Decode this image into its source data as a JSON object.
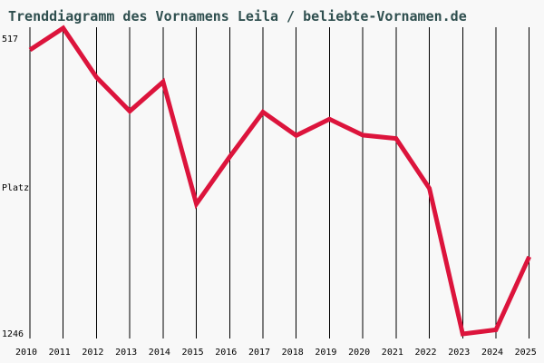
{
  "title": "Trenddiagramm des Vornamens Leila / beliebte-Vornamen.de",
  "colors": {
    "background": "#f8f8f8",
    "line": "#dc143c",
    "grid": "#000000",
    "title_text": "#2f4f4f",
    "axis_text": "#000000"
  },
  "y_axis": {
    "best_label": "517",
    "axis_title": "Platz",
    "worst_label": "1246"
  },
  "chart_data": {
    "type": "line",
    "title": "Trenddiagramm des Vornamens Leila / beliebte-Vornamen.de",
    "categories": [
      "2010",
      "2011",
      "2012",
      "2013",
      "2014",
      "2015",
      "2016",
      "2017",
      "2018",
      "2019",
      "2020",
      "2021",
      "2022",
      "2023",
      "2024",
      "2025"
    ],
    "values": [
      569,
      517,
      634,
      715,
      645,
      936,
      824,
      717,
      773,
      734,
      772,
      780,
      899,
      1246,
      1236,
      1062
    ],
    "series_name": "Platz von Leila",
    "xlabel": "",
    "ylabel": "Platz",
    "ylim": [
      517,
      1246
    ],
    "y_axis_inverted": true,
    "y_tick_labels_shown": [
      "517",
      "1246"
    ],
    "grid": "vertical-only",
    "legend": "none",
    "line_color": "#dc143c",
    "best_value": 517,
    "best_year": "2011",
    "worst_value": 1246,
    "worst_year": "2023"
  }
}
